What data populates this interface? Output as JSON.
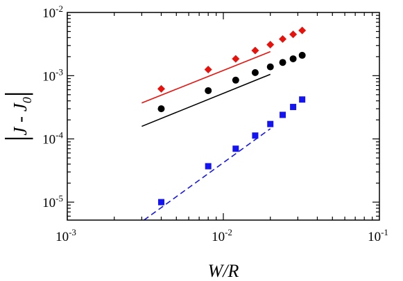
{
  "chart_data": {
    "type": "scatter",
    "xscale": "log",
    "yscale": "log",
    "xlim": [
      0.001,
      0.1
    ],
    "ylim": [
      5.2e-06,
      0.01
    ],
    "grid": false,
    "xlabel_italic": "W/R",
    "ylabel_parts": {
      "left_bar": "|",
      "j": "J",
      "minus": " - ",
      "j0_base": "J",
      "j0_sub": "0",
      "right_bar": "|"
    },
    "x_ticks": [
      {
        "value": 0.001,
        "base": "10",
        "exp": "-3"
      },
      {
        "value": 0.01,
        "base": "10",
        "exp": "-2"
      },
      {
        "value": 0.1,
        "base": "10",
        "exp": "-1"
      }
    ],
    "y_ticks": [
      {
        "value": 1e-05,
        "base": "10",
        "exp": "-5"
      },
      {
        "value": 0.0001,
        "base": "10",
        "exp": "-4"
      },
      {
        "value": 0.001,
        "base": "10",
        "exp": "-3"
      },
      {
        "value": 0.01,
        "base": "10",
        "exp": "-2"
      }
    ],
    "series": [
      {
        "marker": "diamond",
        "color": "#e8120c",
        "x": [
          0.004,
          0.008,
          0.012,
          0.016,
          0.02,
          0.024,
          0.028,
          0.032
        ],
        "y": [
          0.00062,
          0.00125,
          0.00185,
          0.0025,
          0.0031,
          0.0038,
          0.0045,
          0.0052
        ]
      },
      {
        "marker": "circle",
        "color": "#000000",
        "x": [
          0.004,
          0.008,
          0.012,
          0.016,
          0.02,
          0.024,
          0.028,
          0.032
        ],
        "y": [
          0.0003,
          0.00058,
          0.00085,
          0.00112,
          0.00138,
          0.00162,
          0.00185,
          0.0021
        ]
      },
      {
        "marker": "square",
        "color": "#1414f0",
        "x": [
          0.004,
          0.008,
          0.012,
          0.016,
          0.02,
          0.024,
          0.028,
          0.032
        ],
        "y": [
          1e-05,
          3.7e-05,
          7e-05,
          0.000113,
          0.000172,
          0.00024,
          0.00032,
          0.00042
        ]
      }
    ],
    "fit_lines": [
      {
        "color": "#e8120c",
        "dash": false,
        "x": [
          0.003,
          0.02
        ],
        "y": [
          0.00037,
          0.0024
        ]
      },
      {
        "color": "#000000",
        "dash": false,
        "x": [
          0.003,
          0.02
        ],
        "y": [
          0.000158,
          0.00105
        ]
      },
      {
        "color": "#1414f0",
        "dash": true,
        "x": [
          0.0031,
          0.02
        ],
        "y": [
          5.2e-06,
          0.000145
        ]
      }
    ]
  }
}
